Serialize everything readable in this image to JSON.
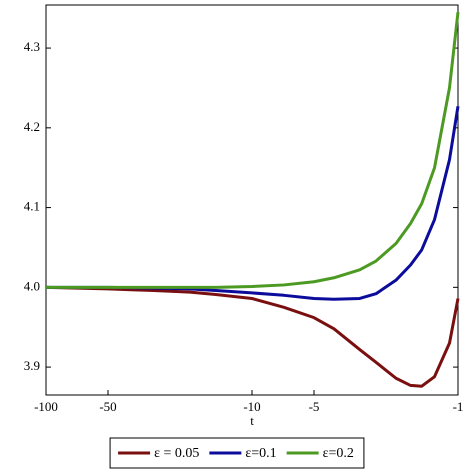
{
  "chart_data": {
    "type": "line",
    "x_label": "t",
    "x": [
      -100,
      -70,
      -50,
      -30,
      -20,
      -15,
      -10,
      -7,
      -5,
      -4,
      -3,
      -2.5,
      -2,
      -1.7,
      -1.5,
      -1.3,
      -1.1,
      -1
    ],
    "series": [
      {
        "name": "ε = 0.05",
        "color": "#7a0f0f",
        "values": [
          4.0,
          3.999,
          3.998,
          3.996,
          3.994,
          3.991,
          3.986,
          3.975,
          3.962,
          3.948,
          3.922,
          3.906,
          3.886,
          3.877,
          3.876,
          3.888,
          3.93,
          3.986
        ]
      },
      {
        "name": "ε=0.1",
        "color": "#0c0c9c",
        "values": [
          4.0,
          4.0,
          4.0,
          3.999,
          3.998,
          3.996,
          3.993,
          3.99,
          3.986,
          3.985,
          3.986,
          3.992,
          4.009,
          4.028,
          4.047,
          4.085,
          4.16,
          4.227
        ]
      },
      {
        "name": "ε=0.2",
        "color": "#4c9a22",
        "values": [
          4.0,
          4.0,
          4.0,
          4.0,
          4.0,
          4.0,
          4.001,
          4.003,
          4.007,
          4.012,
          4.022,
          4.033,
          4.055,
          4.08,
          4.105,
          4.15,
          4.25,
          4.345
        ]
      }
    ],
    "xlim": [
      -100,
      -1
    ],
    "xticks": [
      -100,
      -50,
      -10,
      -5,
      -1
    ],
    "xlog": true,
    "ylim": [
      3.865,
      4.354
    ],
    "yticks": [
      3.9,
      {
        "value": 4,
        "label": "4.0"
      },
      4.1,
      4.2,
      4.3
    ],
    "legend": "bottom"
  }
}
